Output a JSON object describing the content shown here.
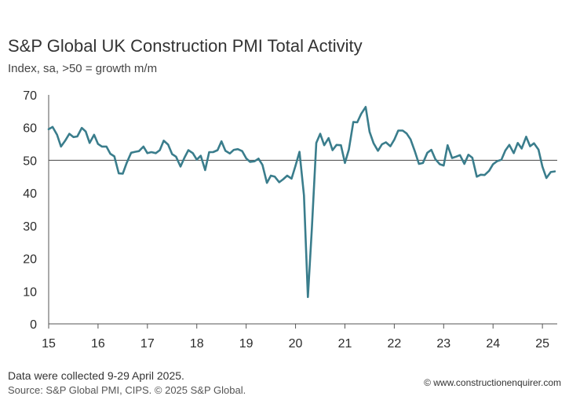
{
  "chart_data": {
    "type": "line",
    "title": "S&P Global UK Construction PMI Total Activity",
    "subtitle": "Index, sa, >50 = growth m/m",
    "xlabel": "",
    "ylabel": "",
    "ylim": [
      0,
      70
    ],
    "yticks": [
      0,
      10,
      20,
      30,
      40,
      50,
      60,
      70
    ],
    "xlim": [
      2015.0,
      2025.3
    ],
    "xticks": [
      "15",
      "16",
      "17",
      "18",
      "19",
      "20",
      "21",
      "22",
      "23",
      "24",
      "25"
    ],
    "reference_line": 50,
    "series": [
      {
        "name": "Total Activity",
        "color": "#3a7d8c",
        "x": [
          2015.0,
          2015.08,
          2015.17,
          2015.25,
          2015.33,
          2015.42,
          2015.5,
          2015.58,
          2015.67,
          2015.75,
          2015.83,
          2015.92,
          2016.0,
          2016.08,
          2016.17,
          2016.25,
          2016.33,
          2016.42,
          2016.5,
          2016.58,
          2016.67,
          2016.75,
          2016.83,
          2016.92,
          2017.0,
          2017.08,
          2017.17,
          2017.25,
          2017.33,
          2017.42,
          2017.5,
          2017.58,
          2017.67,
          2017.75,
          2017.83,
          2017.92,
          2018.0,
          2018.08,
          2018.17,
          2018.25,
          2018.33,
          2018.42,
          2018.5,
          2018.58,
          2018.67,
          2018.75,
          2018.83,
          2018.92,
          2019.0,
          2019.08,
          2019.17,
          2019.25,
          2019.33,
          2019.42,
          2019.5,
          2019.58,
          2019.67,
          2019.75,
          2019.83,
          2019.92,
          2020.0,
          2020.08,
          2020.17,
          2020.25,
          2020.33,
          2020.42,
          2020.5,
          2020.58,
          2020.67,
          2020.75,
          2020.83,
          2020.92,
          2021.0,
          2021.08,
          2021.17,
          2021.25,
          2021.33,
          2021.42,
          2021.5,
          2021.58,
          2021.67,
          2021.75,
          2021.83,
          2021.92,
          2022.0,
          2022.08,
          2022.17,
          2022.25,
          2022.33,
          2022.42,
          2022.5,
          2022.58,
          2022.67,
          2022.75,
          2022.83,
          2022.92,
          2023.0,
          2023.08,
          2023.17,
          2023.25,
          2023.33,
          2023.42,
          2023.5,
          2023.58,
          2023.67,
          2023.75,
          2023.83,
          2023.92,
          2024.0,
          2024.08,
          2024.17,
          2024.25,
          2024.33,
          2024.42,
          2024.5,
          2024.58,
          2024.67,
          2024.75,
          2024.83,
          2024.92,
          2025.0,
          2025.08,
          2025.17,
          2025.25
        ],
        "values": [
          59.5,
          60.2,
          57.8,
          54.2,
          55.9,
          58.1,
          57.1,
          57.3,
          59.9,
          58.8,
          55.3,
          57.8,
          55.0,
          54.2,
          54.2,
          52.0,
          51.2,
          46.0,
          45.9,
          49.2,
          52.3,
          52.6,
          52.8,
          54.2,
          52.2,
          52.5,
          52.2,
          53.1,
          56.0,
          54.8,
          51.9,
          51.1,
          48.1,
          50.8,
          53.1,
          52.2,
          50.2,
          51.4,
          47.0,
          52.5,
          52.5,
          53.1,
          55.8,
          52.9,
          52.1,
          53.2,
          53.4,
          52.8,
          50.6,
          49.5,
          49.7,
          50.5,
          48.6,
          43.1,
          45.3,
          45.0,
          43.3,
          44.2,
          45.3,
          44.4,
          48.4,
          52.6,
          39.3,
          8.2,
          28.9,
          55.3,
          58.1,
          54.6,
          56.8,
          53.1,
          54.7,
          54.6,
          49.2,
          53.3,
          61.7,
          61.6,
          64.2,
          66.3,
          58.7,
          55.2,
          52.9,
          54.9,
          55.5,
          54.3,
          56.3,
          59.1,
          59.1,
          58.2,
          56.4,
          52.6,
          48.9,
          49.2,
          52.3,
          53.2,
          50.4,
          48.8,
          48.4,
          54.6,
          50.7,
          51.1,
          51.6,
          48.9,
          51.7,
          50.8,
          45.0,
          45.6,
          45.5,
          46.8,
          48.8,
          49.7,
          50.2,
          53.0,
          54.7,
          52.2,
          55.3,
          53.6,
          57.2,
          54.3,
          55.2,
          53.3,
          48.1,
          44.6,
          46.4,
          46.6
        ]
      }
    ]
  },
  "footer": {
    "note": "Data were collected 9-29 April 2025.",
    "source": "Source: S&P Global PMI, CIPS. © 2025 S&P Global.",
    "credit": "© www.constructionenquirer.com"
  }
}
